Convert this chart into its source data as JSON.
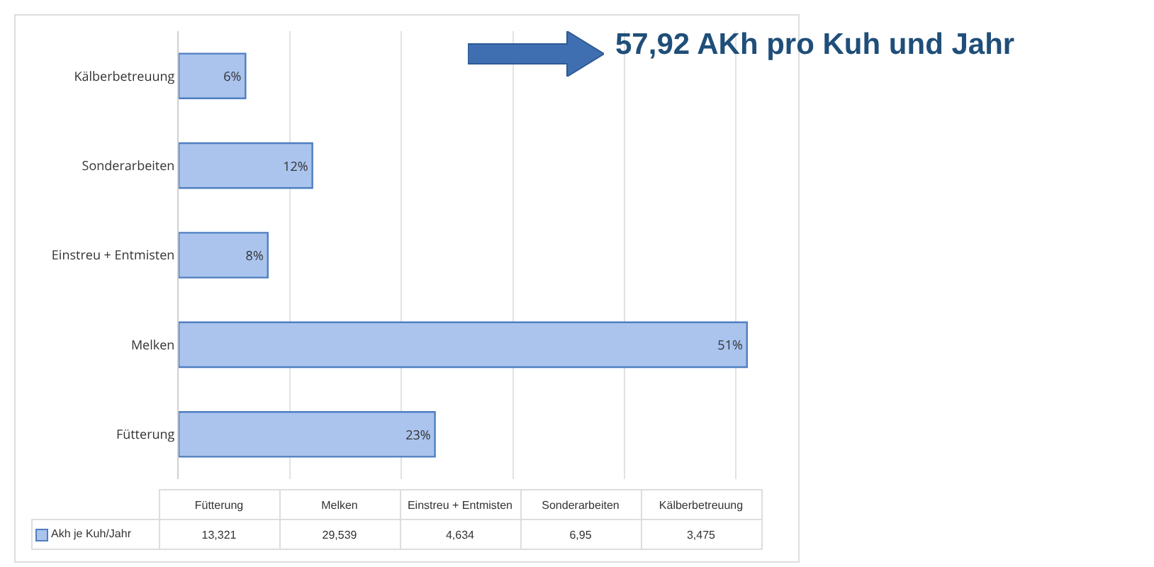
{
  "chart_data": {
    "type": "bar",
    "orientation": "horizontal",
    "title": "57,92 AKh pro Kuh und Jahr",
    "categories": [
      "Kälberbetreuung",
      "Sonderarbeiten",
      "Einstreu + Entmisten",
      "Melken",
      "Fütterung"
    ],
    "series": [
      {
        "name": "Akh je Kuh/Jahr",
        "color": "#aac4ee",
        "values": [
          6,
          12,
          8,
          51,
          23
        ],
        "value_labels": [
          "6%",
          "12%",
          "8%",
          "51%",
          "23%"
        ]
      }
    ],
    "annotations": [
      "3,475",
      "6,95",
      "4,634",
      "29,539",
      "13,321"
    ],
    "grid": "x",
    "legend": "bottom",
    "tick_labels": "y"
  }
}
